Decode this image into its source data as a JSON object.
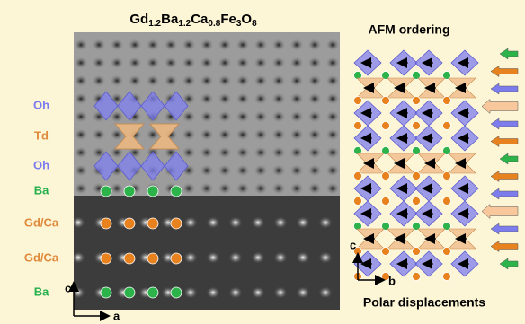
{
  "figure": {
    "title": {
      "parts": [
        "Gd",
        "1.2",
        "Ba",
        "1.2",
        "Ca",
        "0.8",
        "Fe",
        "3",
        "O",
        "8"
      ]
    },
    "layer_labels": [
      {
        "text": "Oh",
        "color": "#7b7bf0"
      },
      {
        "text": "Td",
        "color": "#e08a3c"
      },
      {
        "text": "Oh",
        "color": "#7b7bf0"
      },
      {
        "text": "Ba",
        "color": "#22b04b"
      },
      {
        "text": "Gd/Ca",
        "color": "#e08a3c"
      },
      {
        "text": "Gd/Ca",
        "color": "#e08a3c"
      },
      {
        "text": "Ba",
        "color": "#22b04b"
      }
    ],
    "image_axes": {
      "vertical": "c",
      "horizontal": "a"
    },
    "afm_title": "AFM ordering",
    "structure_axes": {
      "vertical": "c",
      "horizontal": "b"
    },
    "caption": "Polar displacements"
  }
}
